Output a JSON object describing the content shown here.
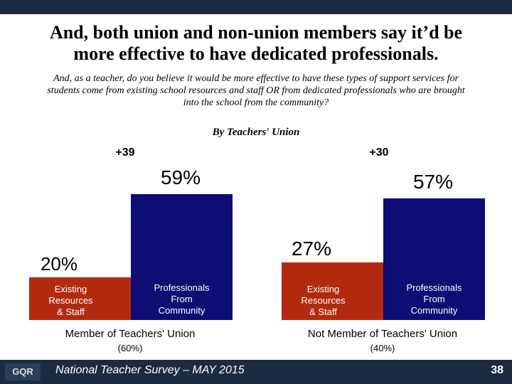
{
  "slide": {
    "title_line1": "And, both union and non-union members say it’d be",
    "title_line2": "more effective to have dedicated professionals.",
    "subtitle": "And, as a teacher, do you believe it would be more effective to have these types of support services for students come from existing school resources and staff OR from dedicated professionals who are brought into the school from the community?"
  },
  "footer": {
    "logo": "GQR",
    "text": "National Teacher Survey – MAY 2015",
    "page": "38"
  },
  "chart_data": {
    "type": "bar",
    "title": "By Teachers' Union",
    "ylim": [
      0,
      100
    ],
    "categories": [
      "Existing Resources & Staff",
      "Professionals From Community"
    ],
    "groups": [
      {
        "name": "Member of Teachers' Union",
        "share": "(60%)",
        "diff": "+39",
        "values": [
          20,
          59
        ],
        "labels": [
          "20%",
          "59%"
        ]
      },
      {
        "name": "Not Member of Teachers' Union",
        "share": "(40%)",
        "diff": "+30",
        "values": [
          27,
          57
        ],
        "labels": [
          "27%",
          "57%"
        ]
      }
    ],
    "bar_text": [
      [
        "Existing",
        "Resources",
        "& Staff"
      ],
      [
        "Professionals",
        "From",
        "Community"
      ]
    ],
    "colors": [
      "#b22a10",
      "#0d0d73"
    ]
  }
}
